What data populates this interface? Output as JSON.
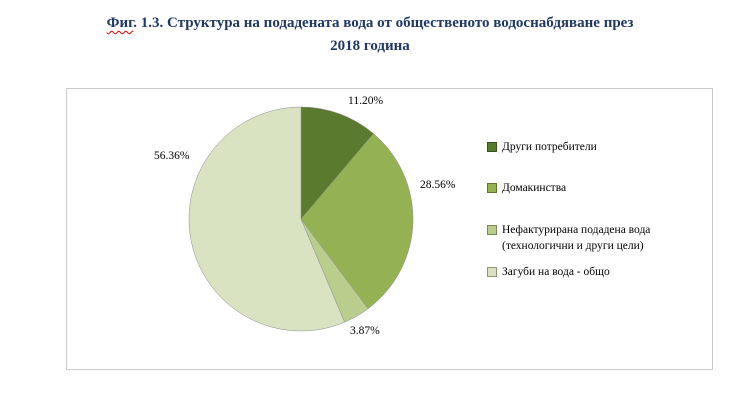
{
  "title": {
    "flagged_word": "Фиг",
    "line1_rest": ". 1.3. Структура на подадената вода от общественото водоснабдяване през",
    "line2": "2018 година",
    "color": "#1f3864"
  },
  "chart_data": {
    "type": "pie",
    "title": "Фиг. 1.3. Структура на подадената вода от общественото водоснабдяване през 2018 година",
    "unit": "percent",
    "start_angle_deg": 0,
    "direction": "clockwise",
    "legend_position": "right",
    "slices": [
      {
        "label": "Други потребители",
        "value": 11.2,
        "display": "11.20%",
        "color": "#5a7a2e"
      },
      {
        "label": "Домакинства",
        "value": 28.56,
        "display": "28.56%",
        "color": "#94b254"
      },
      {
        "label": "Нефактурирана  подадена вода (технологични и други цели)",
        "value": 3.87,
        "display": "3.87%",
        "color": "#b9cd8d"
      },
      {
        "label": "Загуби на вода - общо",
        "value": 56.36,
        "display": "56.36%",
        "color": "#d9e3c2"
      }
    ]
  }
}
